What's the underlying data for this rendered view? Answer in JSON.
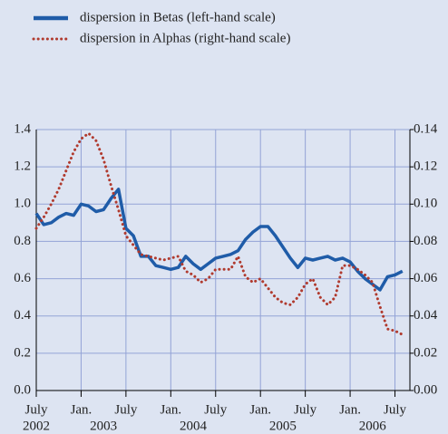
{
  "chart_data": {
    "type": "line",
    "x": [
      "2002-07",
      "2002-08",
      "2002-09",
      "2002-10",
      "2002-11",
      "2002-12",
      "2003-01",
      "2003-02",
      "2003-03",
      "2003-04",
      "2003-05",
      "2003-06",
      "2003-07",
      "2003-08",
      "2003-09",
      "2003-10",
      "2003-11",
      "2003-12",
      "2004-01",
      "2004-02",
      "2004-03",
      "2004-04",
      "2004-05",
      "2004-06",
      "2004-07",
      "2004-08",
      "2004-09",
      "2004-10",
      "2004-11",
      "2004-12",
      "2005-01",
      "2005-02",
      "2005-03",
      "2005-04",
      "2005-05",
      "2005-06",
      "2005-07",
      "2005-08",
      "2005-09",
      "2005-10",
      "2005-11",
      "2005-12",
      "2006-01",
      "2006-02",
      "2006-03",
      "2006-04",
      "2006-05",
      "2006-06",
      "2006-07",
      "2006-08"
    ],
    "series": [
      {
        "name": "dispersion in Betas (left-hand scale)",
        "color": "#1f5ca8",
        "style": "solid",
        "axis": "y",
        "values": [
          0.95,
          0.89,
          0.9,
          0.93,
          0.95,
          0.94,
          1.0,
          0.99,
          0.96,
          0.97,
          1.03,
          1.08,
          0.87,
          0.83,
          0.72,
          0.72,
          0.67,
          0.66,
          0.65,
          0.66,
          0.72,
          0.68,
          0.65,
          0.68,
          0.71,
          0.72,
          0.73,
          0.75,
          0.81,
          0.85,
          0.88,
          0.88,
          0.83,
          0.77,
          0.71,
          0.66,
          0.71,
          0.7,
          0.71,
          0.72,
          0.7,
          0.71,
          0.69,
          0.64,
          0.6,
          0.57,
          0.54,
          0.61,
          0.62,
          0.64
        ]
      },
      {
        "name": "dispersion in Alphas (right-hand scale)",
        "color": "#b03a2e",
        "style": "dotted",
        "axis": "y2",
        "values": [
          0.087,
          0.093,
          0.1,
          0.108,
          0.118,
          0.128,
          0.135,
          0.138,
          0.134,
          0.124,
          0.11,
          0.097,
          0.083,
          0.078,
          0.073,
          0.072,
          0.071,
          0.07,
          0.071,
          0.072,
          0.064,
          0.062,
          0.058,
          0.06,
          0.065,
          0.065,
          0.065,
          0.072,
          0.061,
          0.058,
          0.06,
          0.055,
          0.05,
          0.047,
          0.046,
          0.05,
          0.057,
          0.06,
          0.05,
          0.046,
          0.05,
          0.067,
          0.067,
          0.065,
          0.062,
          0.058,
          0.045,
          0.033,
          0.032,
          0.03
        ]
      }
    ],
    "xlim": [
      "2002-07",
      "2006-09"
    ],
    "xticks": [
      {
        "value": "2002-07",
        "label": "July"
      },
      {
        "value": "2003-01",
        "label": "Jan."
      },
      {
        "value": "2003-07",
        "label": "July"
      },
      {
        "value": "2004-01",
        "label": "Jan."
      },
      {
        "value": "2004-07",
        "label": "July"
      },
      {
        "value": "2005-01",
        "label": "Jan."
      },
      {
        "value": "2005-07",
        "label": "July"
      },
      {
        "value": "2006-01",
        "label": "Jan."
      },
      {
        "value": "2006-07",
        "label": "July"
      }
    ],
    "year_labels": [
      {
        "value": "2002-07",
        "label": "2002"
      },
      {
        "value": "2003-04",
        "label": "2003"
      },
      {
        "value": "2004-04",
        "label": "2004"
      },
      {
        "value": "2005-04",
        "label": "2005"
      },
      {
        "value": "2006-04",
        "label": "2006"
      }
    ],
    "ylim": [
      0,
      1.4
    ],
    "yticks": [
      {
        "value": 0,
        "label": "0.0"
      },
      0.2,
      0.4,
      0.6,
      0.8,
      {
        "value": 1,
        "label": "1.0"
      },
      1.2,
      1.4
    ],
    "y2lim": [
      0,
      0.14
    ],
    "y2ticks": [
      {
        "value": 0,
        "label": "0.00"
      },
      {
        "value": 0.02,
        "label": "0.02"
      },
      {
        "value": 0.04,
        "label": "0.04"
      },
      {
        "value": 0.06,
        "label": "0.06"
      },
      {
        "value": 0.08,
        "label": "0.08"
      },
      {
        "value": 0.1,
        "label": "0.10"
      },
      {
        "value": 0.12,
        "label": "0.12"
      },
      {
        "value": 0.14,
        "label": "0.14"
      }
    ],
    "grid": true,
    "legend": "top-left"
  }
}
